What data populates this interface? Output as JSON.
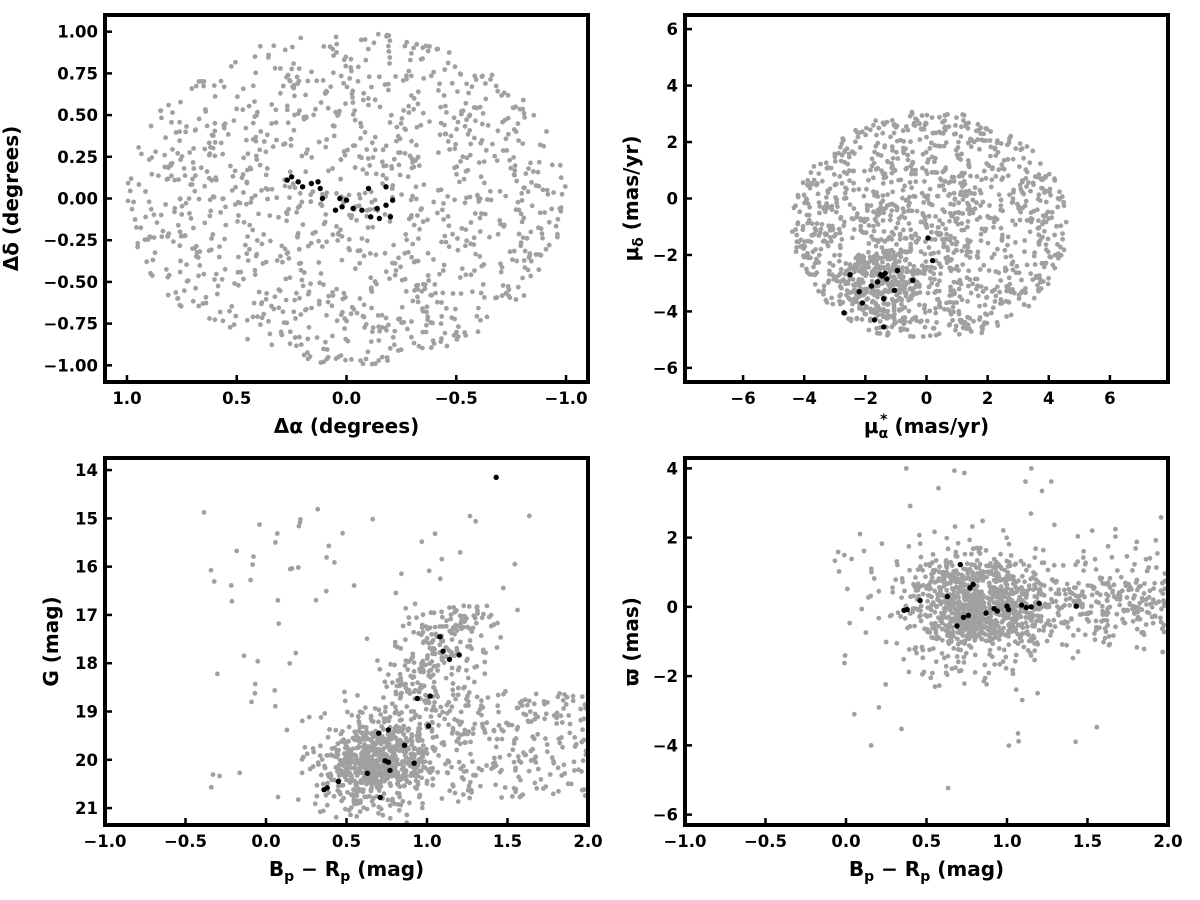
{
  "chart_data": [
    {
      "id": "sky",
      "type": "scatter",
      "xlabel": "Δα (degrees)",
      "ylabel": "Δδ (degrees)",
      "xlim": [
        1.1,
        -1.1
      ],
      "ylim": [
        -1.1,
        1.1
      ],
      "xticks": [
        1.0,
        0.5,
        0.0,
        -0.5,
        -1.0
      ],
      "xtick_labels": [
        "1.0",
        "0.5",
        "0.0",
        "−0.5",
        "−1.0"
      ],
      "yticks": [
        -1.0,
        -0.75,
        -0.5,
        -0.25,
        0.0,
        0.25,
        0.5,
        0.75,
        1.0
      ],
      "ytick_labels": [
        "−1.00",
        "−0.75",
        "−0.50",
        "−0.25",
        "0.00",
        "0.25",
        "0.50",
        "0.75",
        "1.00"
      ],
      "grid": false,
      "series": [
        {
          "color": "#a0a0a0",
          "generated": {
            "shape": "disk",
            "center": [
              0.0,
              0.0
            ],
            "radius_x": 1.0,
            "radius_y": 1.0,
            "count": 1150,
            "seed": 11
          }
        },
        {
          "color": "#000000",
          "points": [
            [
              0.27,
              0.11
            ],
            [
              0.25,
              0.13
            ],
            [
              0.22,
              0.1
            ],
            [
              0.2,
              0.07
            ],
            [
              0.16,
              0.09
            ],
            [
              0.13,
              0.1
            ],
            [
              0.12,
              0.06
            ],
            [
              0.11,
              0.0
            ],
            [
              0.05,
              -0.07
            ],
            [
              0.03,
              0.0
            ],
            [
              0.02,
              -0.05
            ],
            [
              0.0,
              -0.01
            ],
            [
              -0.03,
              -0.06
            ],
            [
              -0.07,
              -0.07
            ],
            [
              -0.1,
              0.06
            ],
            [
              -0.11,
              -0.11
            ],
            [
              -0.14,
              -0.06
            ],
            [
              -0.15,
              -0.12
            ],
            [
              -0.18,
              -0.04
            ],
            [
              -0.18,
              0.07
            ],
            [
              -0.2,
              -0.11
            ],
            [
              -0.21,
              -0.01
            ]
          ]
        }
      ]
    },
    {
      "id": "pm",
      "type": "scatter",
      "xlabel_main": "μ",
      "xlabel_sub": "α",
      "xlabel_sup": "*",
      "xlabel_rest": " (mas/yr)",
      "ylabel_main": "μ",
      "ylabel_sub": "δ",
      "ylabel_rest": " (mas/yr)",
      "xlim": [
        -7.9,
        7.9
      ],
      "ylim": [
        -6.5,
        6.5
      ],
      "xticks": [
        -6,
        -4,
        -2,
        0,
        2,
        4,
        6
      ],
      "xtick_labels": [
        "−6",
        "−4",
        "−2",
        "0",
        "2",
        "4",
        "6"
      ],
      "yticks": [
        -6,
        -4,
        -2,
        0,
        2,
        4,
        6
      ],
      "ytick_labels": [
        "−6",
        "−4",
        "−2",
        "0",
        "2",
        "4",
        "6"
      ],
      "grid": false,
      "series": [
        {
          "color": "#a0a0a0",
          "generated": {
            "shape": "disk",
            "center": [
              0.1,
              -1.0
            ],
            "radius_x": 4.5,
            "radius_y": 4.1,
            "ymin_clip": -4.9,
            "count": 1250,
            "seed": 23,
            "dense_center": [
              -1.5,
              -3.0
            ],
            "dense_radius": [
              1.3,
              1.2
            ],
            "dense_count": 260
          }
        },
        {
          "color": "#000000",
          "points": [
            [
              -2.7,
              -4.05
            ],
            [
              -2.5,
              -2.7
            ],
            [
              -2.2,
              -3.3
            ],
            [
              -2.1,
              -3.7
            ],
            [
              -1.8,
              -3.1
            ],
            [
              -1.7,
              -4.3
            ],
            [
              -1.6,
              -2.95
            ],
            [
              -1.5,
              -2.7
            ],
            [
              -1.45,
              -2.75
            ],
            [
              -1.4,
              -3.55
            ],
            [
              -1.4,
              -4.55
            ],
            [
              -1.35,
              -2.65
            ],
            [
              -1.3,
              -2.85
            ],
            [
              -1.05,
              -3.25
            ],
            [
              -0.95,
              -2.55
            ],
            [
              -0.45,
              -2.9
            ],
            [
              0.05,
              -1.4
            ],
            [
              0.2,
              -2.2
            ]
          ]
        }
      ]
    },
    {
      "id": "cmd",
      "type": "scatter",
      "xlabel_main": "B",
      "xlabel_sub1": "p",
      "xlabel_mid": " − R",
      "xlabel_sub2": "p",
      "xlabel_rest": " (mag)",
      "ylabel": "G (mag)",
      "xlim": [
        -1.0,
        2.0
      ],
      "ylim": [
        21.35,
        13.75
      ],
      "xticks": [
        -1.0,
        -0.5,
        0.0,
        0.5,
        1.0,
        1.5,
        2.0
      ],
      "xtick_labels": [
        "−1.0",
        "−0.5",
        "0.0",
        "0.5",
        "1.0",
        "1.5",
        "2.0"
      ],
      "yticks": [
        14,
        15,
        16,
        17,
        18,
        19,
        20,
        21
      ],
      "ytick_labels": [
        "14",
        "15",
        "16",
        "17",
        "18",
        "19",
        "20",
        "21"
      ],
      "grid": false,
      "series": [
        {
          "color": "#a0a0a0",
          "generated": {
            "shape": "cmd",
            "count": 1300,
            "seed": 37
          }
        },
        {
          "color": "#000000",
          "points": [
            [
              0.36,
              20.62
            ],
            [
              0.38,
              20.58
            ],
            [
              0.45,
              20.45
            ],
            [
              0.63,
              20.28
            ],
            [
              0.71,
              20.78
            ],
            [
              0.74,
              20.02
            ],
            [
              0.76,
              20.05
            ],
            [
              0.77,
              20.22
            ],
            [
              0.7,
              19.45
            ],
            [
              0.76,
              19.38
            ],
            [
              0.86,
              19.7
            ],
            [
              0.92,
              20.07
            ],
            [
              1.01,
              19.3
            ],
            [
              0.94,
              18.73
            ],
            [
              1.02,
              18.68
            ],
            [
              1.1,
              17.75
            ],
            [
              1.08,
              17.45
            ],
            [
              1.14,
              17.92
            ],
            [
              1.2,
              17.83
            ],
            [
              1.43,
              14.15
            ]
          ]
        }
      ]
    },
    {
      "id": "plx",
      "type": "scatter",
      "xlabel_main": "B",
      "xlabel_sub1": "p",
      "xlabel_mid": " − R",
      "xlabel_sub2": "p",
      "xlabel_rest": " (mag)",
      "ylabel": "ϖ (mas)",
      "xlim": [
        -1.0,
        2.0
      ],
      "ylim": [
        -6.3,
        4.3
      ],
      "xticks": [
        -1.0,
        -0.5,
        0.0,
        0.5,
        1.0,
        1.5,
        2.0
      ],
      "xtick_labels": [
        "−1.0",
        "−0.5",
        "0.0",
        "0.5",
        "1.0",
        "1.5",
        "2.0"
      ],
      "yticks": [
        -6,
        -4,
        -2,
        0,
        2,
        4
      ],
      "ytick_labels": [
        "−6",
        "−4",
        "−2",
        "0",
        "2",
        "4"
      ],
      "grid": false,
      "series": [
        {
          "color": "#a0a0a0",
          "generated": {
            "shape": "band",
            "count": 1300,
            "seed": 53
          }
        },
        {
          "color": "#000000",
          "points": [
            [
              0.36,
              -0.1
            ],
            [
              0.38,
              -0.08
            ],
            [
              0.46,
              0.18
            ],
            [
              0.63,
              0.3
            ],
            [
              0.69,
              -0.55
            ],
            [
              0.71,
              1.22
            ],
            [
              0.73,
              -0.3
            ],
            [
              0.76,
              -0.25
            ],
            [
              0.77,
              0.55
            ],
            [
              0.79,
              0.65
            ],
            [
              0.87,
              -0.18
            ],
            [
              0.92,
              -0.05
            ],
            [
              0.94,
              -0.12
            ],
            [
              1.0,
              0.02
            ],
            [
              1.01,
              -0.08
            ],
            [
              1.09,
              0.05
            ],
            [
              1.12,
              -0.02
            ],
            [
              1.15,
              0.0
            ],
            [
              1.2,
              0.1
            ],
            [
              1.43,
              0.02
            ]
          ]
        }
      ]
    }
  ]
}
